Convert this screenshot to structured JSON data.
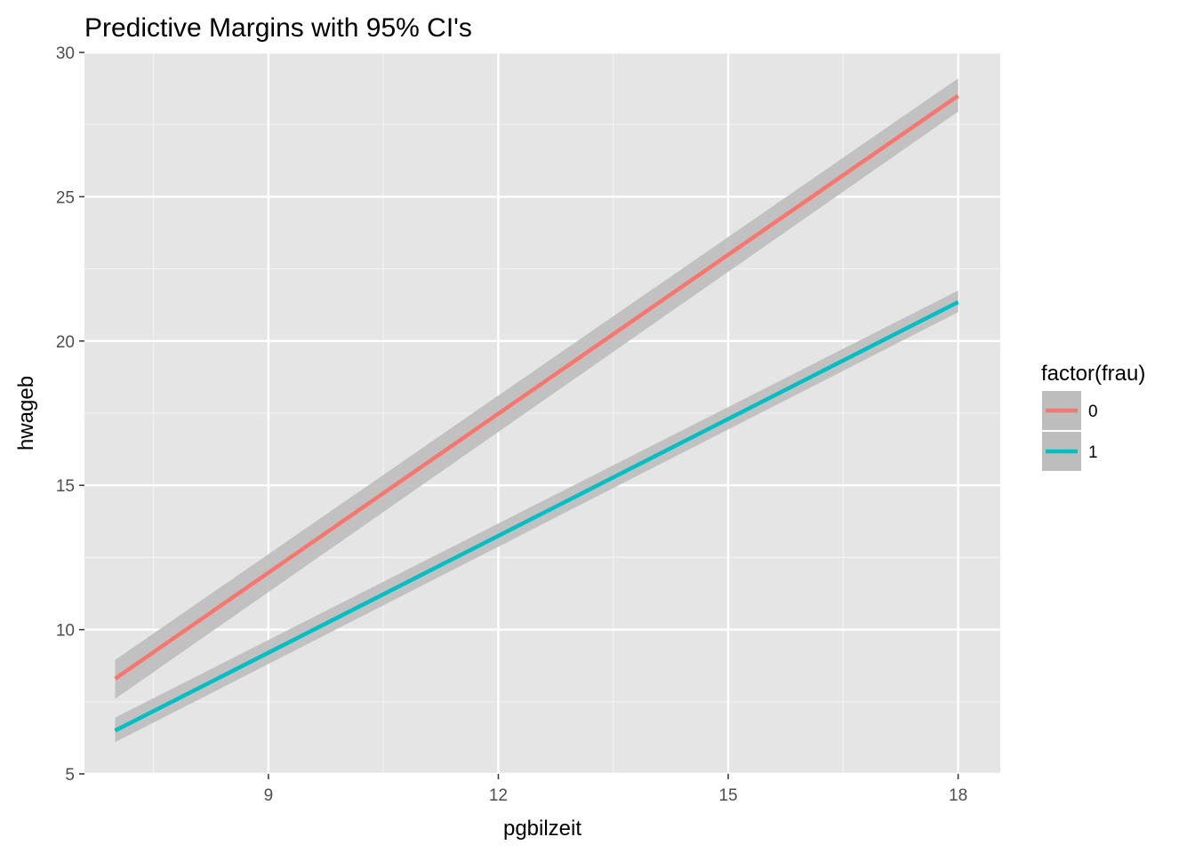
{
  "chart_data": {
    "type": "line",
    "title": "Predictive Margins with 95% CI's",
    "xlabel": "pgbilzeit",
    "ylabel": "hwageb",
    "xlim": [
      6.6,
      18.55
    ],
    "ylim": [
      5,
      30
    ],
    "x_ticks": [
      9,
      12,
      15,
      18
    ],
    "x_minor_ticks": [
      7.5,
      10.5,
      13.5,
      16.5
    ],
    "y_ticks": [
      5,
      10,
      15,
      20,
      25,
      30
    ],
    "y_minor_ticks": [
      7.5,
      12.5,
      17.5,
      22.5,
      27.5
    ],
    "grid": true,
    "legend": {
      "title": "factor(frau)",
      "position": "right"
    },
    "series": [
      {
        "name": "0",
        "color": "#F8766D",
        "x": [
          7,
          18
        ],
        "y": [
          8.3,
          28.5
        ],
        "ci_lower": [
          7.6,
          27.95
        ],
        "ci_upper": [
          8.95,
          29.1
        ]
      },
      {
        "name": "1",
        "color": "#00BFC4",
        "x": [
          7,
          18
        ],
        "y": [
          6.5,
          21.35
        ],
        "ci_lower": [
          6.1,
          21.0
        ],
        "ci_upper": [
          6.95,
          21.75
        ]
      }
    ],
    "ribbon_color": "#bdbdbd"
  }
}
